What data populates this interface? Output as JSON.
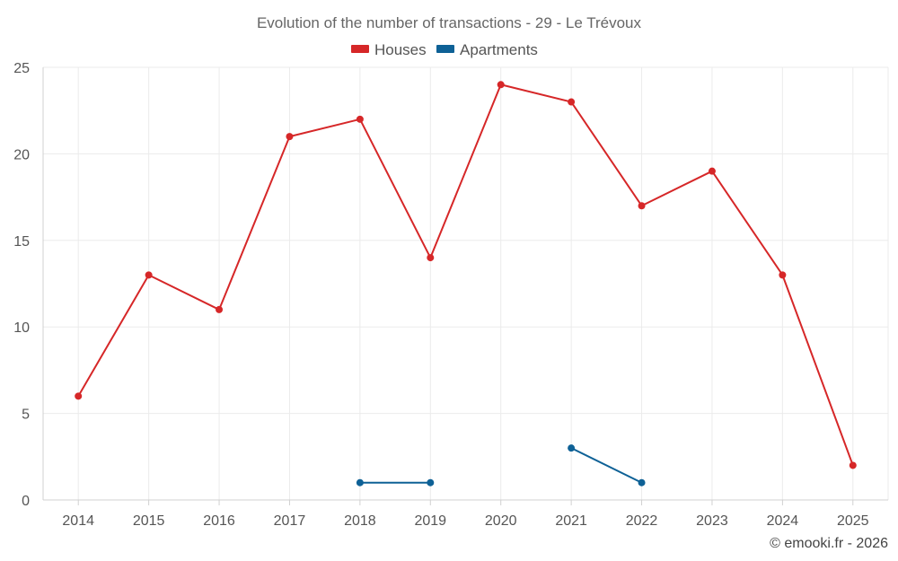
{
  "chart_data": {
    "type": "line",
    "title": "Evolution of the number of transactions - 29 - Le Trévoux",
    "xlabel": "",
    "ylabel": "",
    "categories": [
      "2014",
      "2015",
      "2016",
      "2017",
      "2018",
      "2019",
      "2020",
      "2021",
      "2022",
      "2023",
      "2024",
      "2025"
    ],
    "ylim": [
      0,
      25
    ],
    "yticks": [
      0,
      5,
      10,
      15,
      20,
      25
    ],
    "grid": true,
    "legend_position": "top-center",
    "series": [
      {
        "name": "Houses",
        "color": "#d62728",
        "values": [
          6,
          13,
          11,
          21,
          22,
          14,
          24,
          23,
          17,
          19,
          13,
          2
        ]
      },
      {
        "name": "Apartments",
        "color": "#0e6196",
        "values": [
          null,
          null,
          null,
          null,
          1,
          1,
          null,
          3,
          1,
          null,
          null,
          null
        ]
      }
    ]
  },
  "footer": {
    "credit": "© emooki.fr - 2026"
  }
}
